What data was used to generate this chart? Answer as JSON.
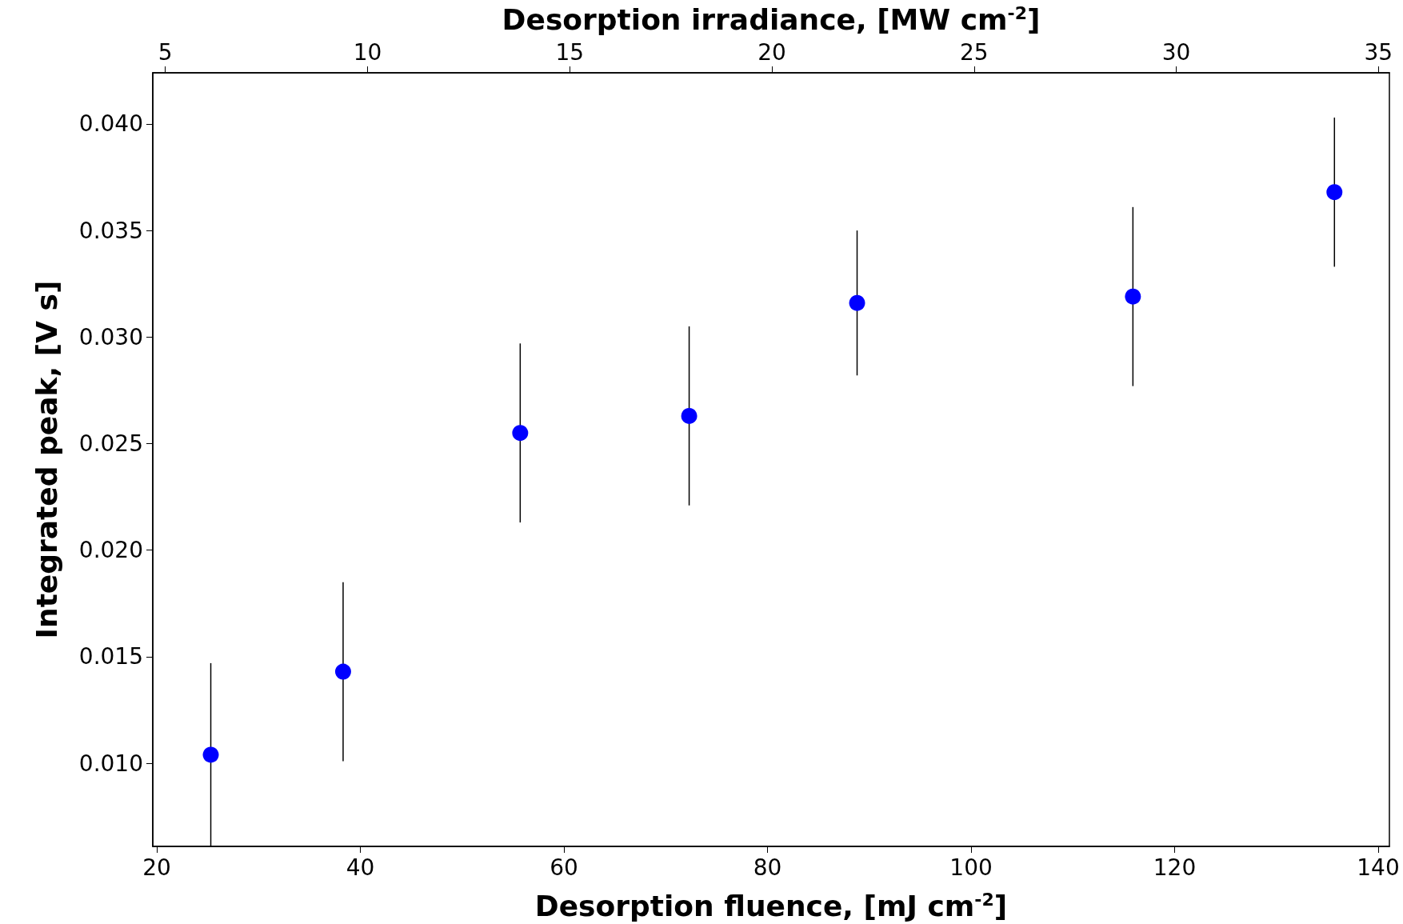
{
  "chart_data": {
    "type": "scatter",
    "xlabel": "Desorption fluence, [mJ cm$^{-2}$]",
    "ylabel": "Integrated peak, [V s]",
    "x2label": "Desorption irradiance, [MW cm$^{-2}$]",
    "x": [
      25.3,
      38.3,
      55.7,
      72.3,
      88.8,
      115.9,
      135.7
    ],
    "series": [
      {
        "color": "#0000ff",
        "values": [
          0.0104,
          0.0143,
          0.0255,
          0.0263,
          0.0316,
          0.0319,
          0.0368
        ],
        "errors": [
          0.0043,
          0.0042,
          0.0042,
          0.0042,
          0.0034,
          0.0042,
          0.0035
        ]
      }
    ],
    "xlim": [
      19.6,
      141.1
    ],
    "xticks": [
      20,
      40,
      60,
      80,
      100,
      120,
      140
    ],
    "x2lim": [
      4.69,
      35.27
    ],
    "x2ticks": [
      5,
      10,
      15,
      20,
      25,
      30,
      35
    ],
    "ylim": [
      0.0061,
      0.0424
    ],
    "yticks": [
      {
        "value": 0.01,
        "label": "0.010"
      },
      {
        "value": 0.015,
        "label": "0.015"
      },
      {
        "value": 0.02,
        "label": "0.020"
      },
      {
        "value": 0.025,
        "label": "0.025"
      },
      {
        "value": 0.03,
        "label": "0.030"
      },
      {
        "value": 0.035,
        "label": "0.035"
      },
      {
        "value": 0.04,
        "label": "0.040"
      }
    ],
    "grid": false,
    "marker": "circle"
  }
}
